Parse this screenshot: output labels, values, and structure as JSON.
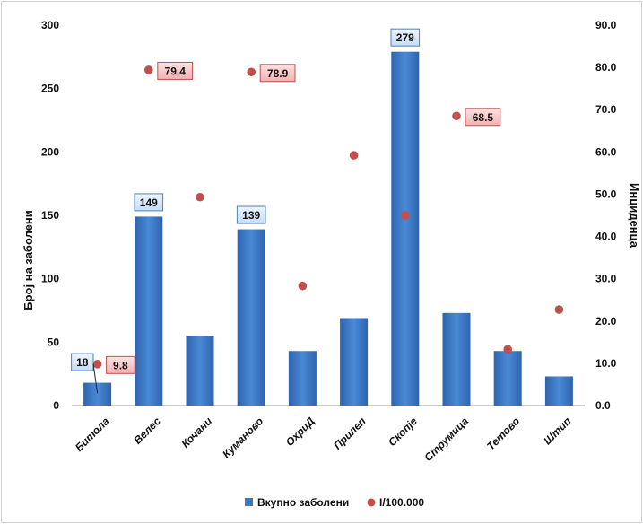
{
  "chart_data": {
    "type": "bar",
    "categories": [
      "Битола",
      "Велес",
      "Кочани",
      "Куманово",
      "ОхриД",
      "Прилеп",
      "Скопје",
      "Струмица",
      "Тетово",
      "Штип"
    ],
    "series": [
      {
        "name": "Вкупно заболени",
        "kind": "bar",
        "axis": "left",
        "color": "#3a78c9",
        "values": [
          18,
          149,
          55,
          139,
          43,
          69,
          279,
          73,
          43,
          23
        ],
        "data_labels": [
          {
            "category": "Битола",
            "text": "18"
          },
          {
            "category": "Велес",
            "text": "149"
          },
          {
            "category": "Куманово",
            "text": "139"
          },
          {
            "category": "Скопје",
            "text": "279"
          }
        ]
      },
      {
        "name": "I/100.000",
        "kind": "scatter",
        "axis": "right",
        "color": "#c0504d",
        "values": [
          9.8,
          79.4,
          49.3,
          78.9,
          28.3,
          59.2,
          45.0,
          68.5,
          13.3,
          22.7
        ],
        "data_labels": [
          {
            "category": "Битола",
            "text": "9.8"
          },
          {
            "category": "Велес",
            "text": "79.4"
          },
          {
            "category": "Куманово",
            "text": "78.9"
          },
          {
            "category": "Струмица",
            "text": "68.5"
          }
        ]
      }
    ],
    "ylabel": "Број на заболени",
    "ylim": [
      0,
      300
    ],
    "yticks": [
      "0",
      "50",
      "100",
      "150",
      "200",
      "250",
      "300"
    ],
    "y2label": "Инциденца",
    "y2lim": [
      0,
      90
    ],
    "y2ticks": [
      "0.0",
      "10.0",
      "20.0",
      "30.0",
      "40.0",
      "50.0",
      "60.0",
      "70.0",
      "80.0",
      "90.0"
    ],
    "grid": false,
    "legend": "bottom-center"
  }
}
